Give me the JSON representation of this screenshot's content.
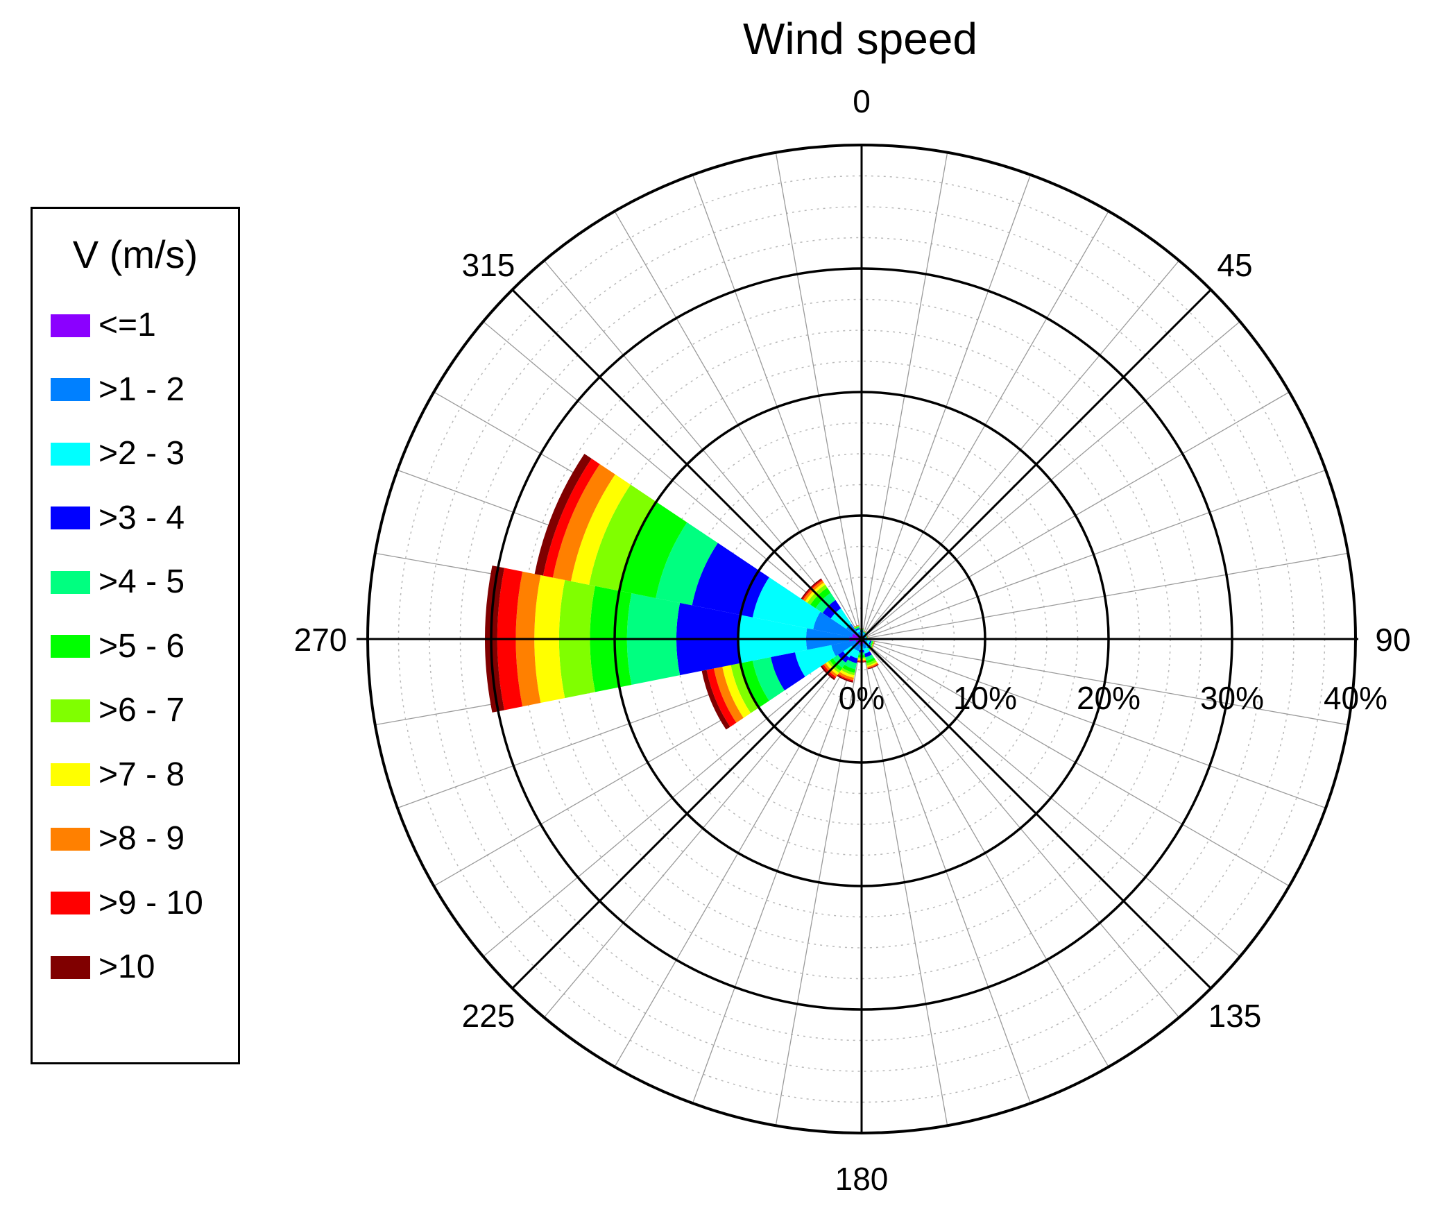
{
  "chart_data": {
    "type": "wind-rose",
    "title": "Wind speed",
    "direction_labels": [
      "0",
      "45",
      "90",
      "135",
      "180",
      "225",
      "270",
      "315"
    ],
    "direction_label_angles": [
      0,
      45,
      90,
      135,
      180,
      225,
      270,
      315
    ],
    "radial_tick_labels": [
      "0%",
      "10%",
      "20%",
      "30%",
      "40%"
    ],
    "radial_ticks": [
      0,
      10,
      20,
      30,
      40
    ],
    "radial_max": 40,
    "sector_width_deg": 22.5,
    "legend": {
      "title": "V (m/s)",
      "items": [
        {
          "label": "<=1",
          "color": "#8B00FF"
        },
        {
          "label": ">1 - 2",
          "color": "#0080FF"
        },
        {
          "label": ">2 - 3",
          "color": "#00FFFF"
        },
        {
          "label": ">3 - 4",
          "color": "#0000FF"
        },
        {
          "label": ">4 - 5",
          "color": "#00FF80"
        },
        {
          "label": ">5 - 6",
          "color": "#00FF00"
        },
        {
          "label": ">6 - 7",
          "color": "#80FF00"
        },
        {
          "label": ">7 - 8",
          "color": "#FFFF00"
        },
        {
          "label": ">8 - 9",
          "color": "#FF8000"
        },
        {
          "label": ">9 - 10",
          "color": "#FF0000"
        },
        {
          "label": ">10",
          "color": "#800000"
        }
      ]
    },
    "sectors": [
      {
        "direction": 0,
        "cumulative": [
          0.3,
          0.5,
          0.6,
          0.7,
          0.75,
          0.8,
          0.82,
          0.84,
          0.85,
          0.86,
          0.87
        ]
      },
      {
        "direction": 22.5,
        "cumulative": [
          0.2,
          0.4,
          0.5,
          0.55,
          0.6,
          0.62,
          0.64,
          0.65,
          0.66,
          0.67,
          0.68
        ]
      },
      {
        "direction": 45,
        "cumulative": [
          0.2,
          0.3,
          0.4,
          0.45,
          0.5,
          0.52,
          0.54,
          0.55,
          0.56,
          0.57,
          0.58
        ]
      },
      {
        "direction": 67.5,
        "cumulative": [
          0.2,
          0.3,
          0.35,
          0.4,
          0.45,
          0.47,
          0.49,
          0.5,
          0.51,
          0.52,
          0.53
        ]
      },
      {
        "direction": 90,
        "cumulative": [
          0.2,
          0.3,
          0.4,
          0.45,
          0.5,
          0.55,
          0.58,
          0.6,
          0.62,
          0.63,
          0.64
        ]
      },
      {
        "direction": 112.5,
        "cumulative": [
          0.3,
          0.5,
          0.7,
          0.8,
          0.9,
          0.95,
          1.0,
          1.03,
          1.05,
          1.07,
          1.08
        ]
      },
      {
        "direction": 135,
        "cumulative": [
          0.3,
          0.6,
          0.8,
          0.9,
          1.0,
          1.05,
          1.1,
          1.12,
          1.14,
          1.15,
          1.16
        ]
      },
      {
        "direction": 157.5,
        "cumulative": [
          0.4,
          0.8,
          1.2,
          1.5,
          1.8,
          2.0,
          2.2,
          2.3,
          2.4,
          2.45,
          2.5
        ]
      },
      {
        "direction": 180,
        "cumulative": [
          0.3,
          0.6,
          0.9,
          1.1,
          1.3,
          1.5,
          1.6,
          1.7,
          1.8,
          1.85,
          1.9
        ]
      },
      {
        "direction": 202.5,
        "cumulative": [
          0.5,
          1.0,
          1.6,
          2.0,
          2.5,
          2.8,
          3.0,
          3.2,
          3.4,
          3.5,
          3.6
        ]
      },
      {
        "direction": 225,
        "cumulative": [
          0.4,
          1.0,
          1.8,
          2.3,
          2.8,
          3.1,
          3.3,
          3.5,
          3.7,
          3.85,
          4.0
        ]
      },
      {
        "direction": 247.5,
        "cumulative": [
          0.5,
          2.5,
          5.5,
          7.5,
          9.0,
          10.0,
          10.8,
          11.5,
          12.2,
          12.8,
          13.2
        ]
      },
      {
        "direction": 270,
        "cumulative": [
          1.0,
          4.5,
          10.0,
          15.0,
          19.0,
          22.0,
          24.5,
          26.5,
          28.0,
          29.5,
          30.5
        ]
      },
      {
        "direction": 292.5,
        "cumulative": [
          0.8,
          4.0,
          9.0,
          14.0,
          17.0,
          20.0,
          22.5,
          24.0,
          25.5,
          26.3,
          27.0
        ]
      },
      {
        "direction": 315,
        "cumulative": [
          0.5,
          1.5,
          3.0,
          3.8,
          4.5,
          5.0,
          5.3,
          5.5,
          5.7,
          5.8,
          5.9
        ]
      },
      {
        "direction": 337.5,
        "cumulative": [
          0.3,
          0.6,
          0.8,
          0.9,
          1.0,
          1.05,
          1.1,
          1.12,
          1.14,
          1.15,
          1.16
        ]
      }
    ]
  }
}
